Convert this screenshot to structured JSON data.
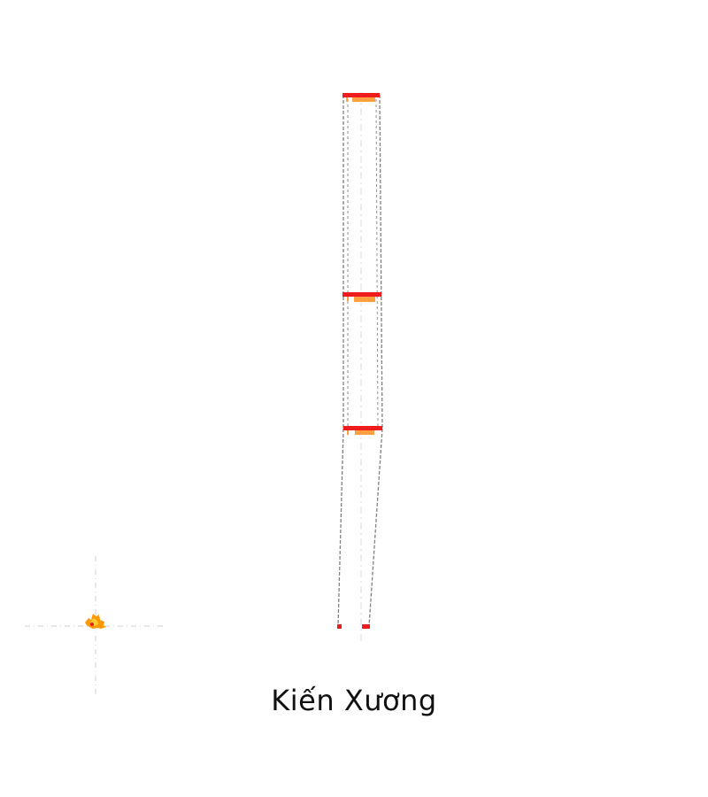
{
  "caption": "Kiến Xương",
  "colors": {
    "background": "#ffffff",
    "outline": "#808080",
    "guide": "#cccccc",
    "band": "#ee1c1c",
    "band_shadow": "#ffa040",
    "marker": "#ff9900"
  }
}
